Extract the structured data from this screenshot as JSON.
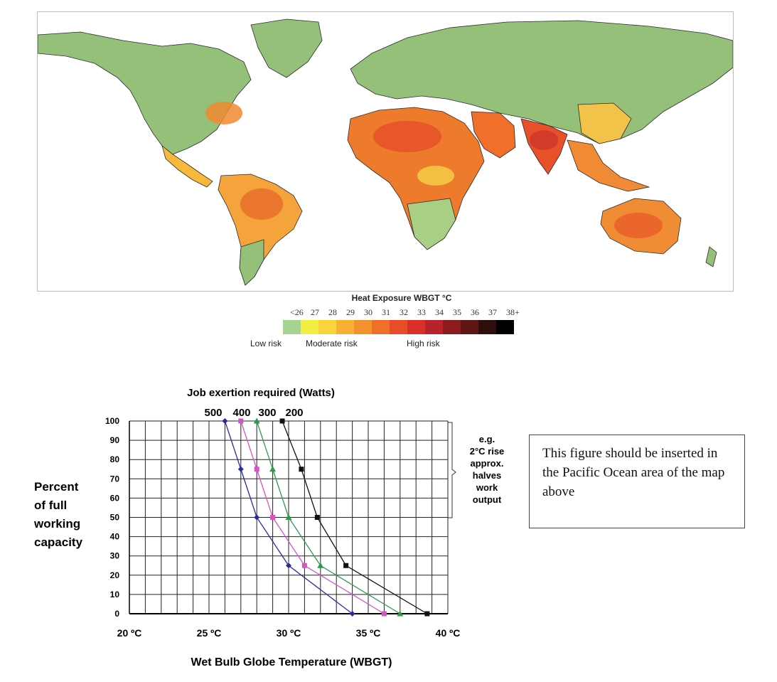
{
  "map": {
    "legend_title": "Heat Exposure WBGT °C",
    "legend_ticks": [
      "<26",
      "27",
      "28",
      "29",
      "30",
      "31",
      "32",
      "33",
      "34",
      "35",
      "36",
      "37",
      "38+"
    ],
    "legend_colors": [
      "#a6d391",
      "#f0ee3e",
      "#fbd33a",
      "#f8b133",
      "#f49230",
      "#ef702b",
      "#e94d27",
      "#d9302a",
      "#b8232b",
      "#8e1b1f",
      "#5e1515",
      "#2e0d0d",
      "#000000"
    ],
    "risk_labels": {
      "low": "Low risk",
      "moderate": "Moderate risk",
      "high": "High risk"
    },
    "palette": {
      "land": "#95c07a",
      "hot": "#ef7a2b",
      "warm": "#f7d04a",
      "ocean": "#ffffff",
      "border": "#2b2b2b"
    }
  },
  "chart_data": {
    "type": "line",
    "title": "Job exertion required (Watts)",
    "xlabel": "Wet Bulb Globe Temperature (WBGT)",
    "ylabel": [
      "Percent",
      "of full",
      "working",
      "capacity"
    ],
    "xlim": [
      20,
      40
    ],
    "ylim": [
      0,
      100
    ],
    "x_tick_labels": [
      "20 ºC",
      "25 ºC",
      "30 ºC",
      "35 ºC",
      "40 ºC"
    ],
    "x_ticks": [
      20,
      25,
      30,
      35,
      40
    ],
    "y_ticks": [
      0,
      10,
      20,
      30,
      40,
      50,
      60,
      70,
      80,
      90,
      100
    ],
    "grid": true,
    "series": [
      {
        "name": "500",
        "color": "#2b2b9a",
        "marker": "diamond",
        "points": [
          [
            26,
            100
          ],
          [
            27,
            75
          ],
          [
            28,
            50
          ],
          [
            30,
            25
          ],
          [
            34,
            0
          ]
        ]
      },
      {
        "name": "400",
        "color": "#d257c3",
        "marker": "square",
        "points": [
          [
            27,
            100
          ],
          [
            28,
            75
          ],
          [
            29,
            50
          ],
          [
            31,
            25
          ],
          [
            36,
            0
          ]
        ]
      },
      {
        "name": "300",
        "color": "#2e9a4e",
        "marker": "triangle",
        "points": [
          [
            28,
            100
          ],
          [
            29,
            75
          ],
          [
            30,
            50
          ],
          [
            32,
            25
          ],
          [
            37,
            0
          ]
        ]
      },
      {
        "name": "200",
        "color": "#111111",
        "marker": "square",
        "points": [
          [
            29.6,
            100
          ],
          [
            30.8,
            75
          ],
          [
            31.8,
            50
          ],
          [
            33.6,
            25
          ],
          [
            38.7,
            0
          ]
        ]
      }
    ],
    "annotation": [
      "e.g.",
      "2°C rise",
      "approx.",
      "halves",
      "work",
      "output"
    ]
  },
  "note": {
    "text": "This figure should be inserted in the Pacific Ocean area of the map above"
  }
}
